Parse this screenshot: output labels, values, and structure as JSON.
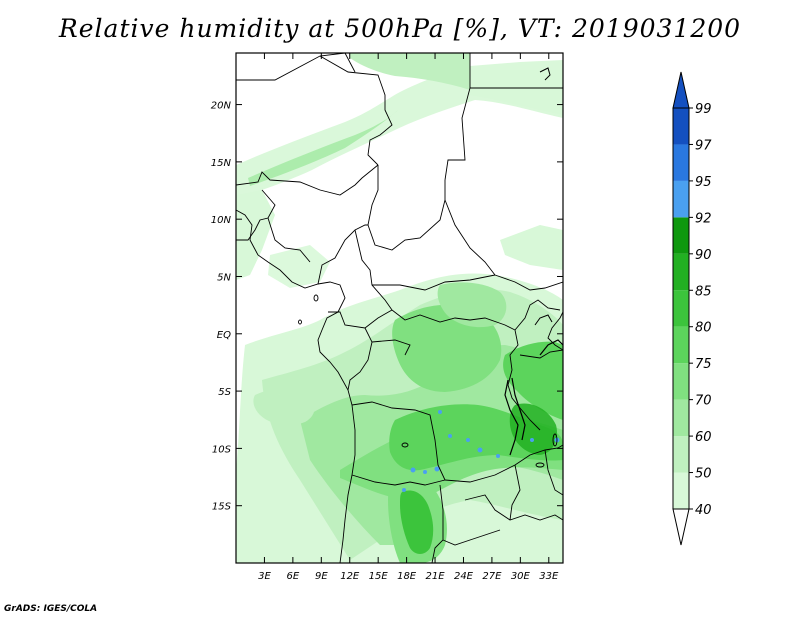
{
  "title": "Relative humidity at 500hPa [%], VT: 2019031200",
  "credit": "GrADS: IGES/COLA",
  "map": {
    "lon_range": [
      0,
      34.5
    ],
    "lat_range": [
      -20,
      24.5
    ],
    "lon_ticks": [
      {
        "value": 3,
        "label": "3E"
      },
      {
        "value": 6,
        "label": "6E"
      },
      {
        "value": 9,
        "label": "9E"
      },
      {
        "value": 12,
        "label": "12E"
      },
      {
        "value": 15,
        "label": "15E"
      },
      {
        "value": 18,
        "label": "18E"
      },
      {
        "value": 21,
        "label": "21E"
      },
      {
        "value": 24,
        "label": "24E"
      },
      {
        "value": 27,
        "label": "27E"
      },
      {
        "value": 30,
        "label": "30E"
      },
      {
        "value": 33,
        "label": "33E"
      }
    ],
    "lat_ticks": [
      {
        "value": 20,
        "label": "20N"
      },
      {
        "value": 15,
        "label": "15N"
      },
      {
        "value": 10,
        "label": "10N"
      },
      {
        "value": 5,
        "label": "5N"
      },
      {
        "value": 0,
        "label": "EQ"
      },
      {
        "value": -5,
        "label": "5S"
      },
      {
        "value": -10,
        "label": "10S"
      },
      {
        "value": -15,
        "label": "15S"
      }
    ]
  },
  "colorbar": {
    "levels": [
      {
        "label": "40",
        "color": "#f0fff0"
      },
      {
        "label": "50",
        "color": "#d8f8d8"
      },
      {
        "label": "60",
        "color": "#c0f0c0"
      },
      {
        "label": "70",
        "color": "#a0e8a0"
      },
      {
        "label": "75",
        "color": "#80e080"
      },
      {
        "label": "80",
        "color": "#5cd45c"
      },
      {
        "label": "85",
        "color": "#3cc43c"
      },
      {
        "label": "90",
        "color": "#22b022"
      },
      {
        "label": "92",
        "color": "#0e980e"
      },
      {
        "label": "95",
        "color": "#4aa0f0"
      },
      {
        "label": "97",
        "color": "#2a78e0"
      },
      {
        "label": "99",
        "color": "#1450c0"
      }
    ],
    "top_arrow_color": "#1450c0",
    "bottom_arrow_color": "#ffffff"
  }
}
